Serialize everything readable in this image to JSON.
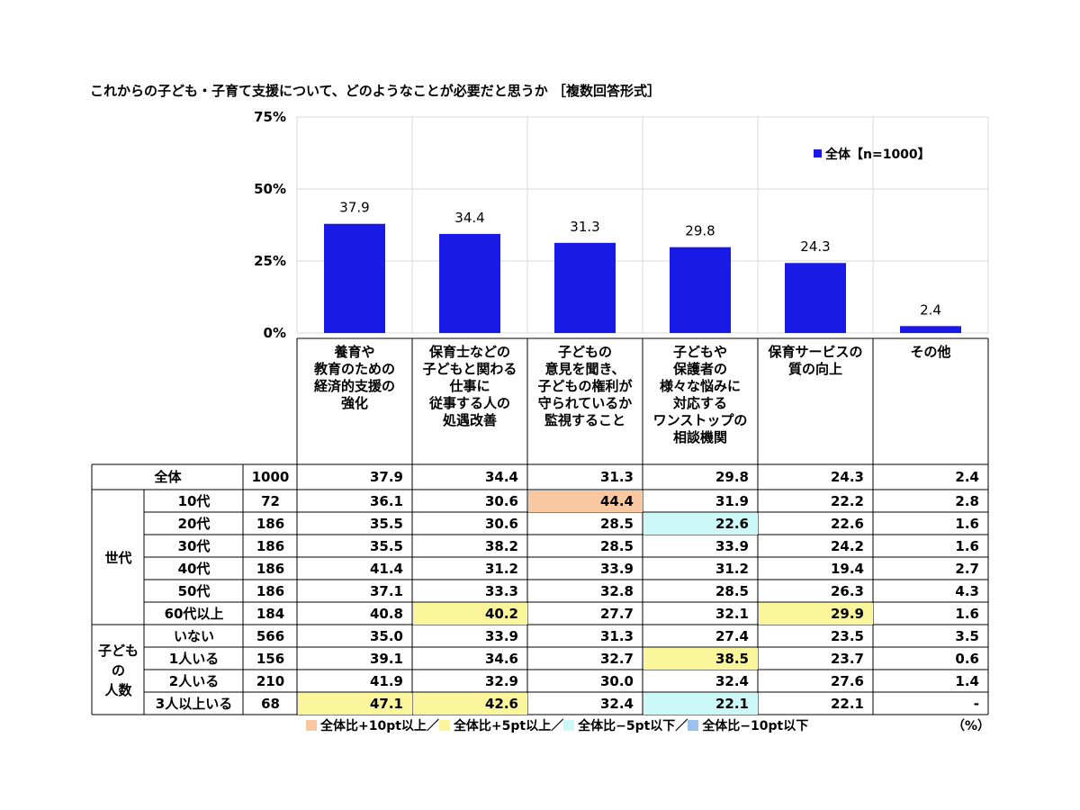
{
  "title": "これからの子ども・子育て支援について、どのようなことが必要だと思うか ［複数回答形式］",
  "chart_data": {
    "type": "bar",
    "categories": [
      "養育や\n教育のための\n経済的支援の\n強化",
      "保育士などの\n子どもと関わる\n仕事に\n従事する人の\n処遇改善",
      "子どもの\n意見を聞き、\n子どもの権利が\n守られているか\n監視すること",
      "子どもや\n保護者の\n様々な悩みに\n対応する\nワンストップの\n相談機関",
      "保育サービスの\n質の向上",
      "その他"
    ],
    "series": [
      {
        "name": "全体【n=1000】",
        "values": [
          37.9,
          34.4,
          31.3,
          29.8,
          24.3,
          2.4
        ]
      }
    ],
    "data_labels": [
      "37.9",
      "34.4",
      "31.3",
      "29.8",
      "24.3",
      "2.4"
    ],
    "yticks": [
      "75%",
      "50%",
      "25%",
      "0%"
    ],
    "ylim": [
      0,
      75
    ],
    "grid": true,
    "legend_position": "top-right",
    "bar_color": "#1a1ae6"
  },
  "table": {
    "rows": [
      {
        "group": "",
        "label": "全体",
        "n": "1000",
        "values": [
          "37.9",
          "34.4",
          "31.3",
          "29.8",
          "24.3",
          "2.4"
        ],
        "highlight": [
          null,
          null,
          null,
          null,
          null,
          null
        ]
      },
      {
        "group": "g1",
        "label": "10代",
        "n": "72",
        "values": [
          "36.1",
          "30.6",
          "44.4",
          "31.9",
          "22.2",
          "2.8"
        ],
        "highlight": [
          null,
          null,
          "p10",
          null,
          null,
          null
        ]
      },
      {
        "group": "g1",
        "label": "20代",
        "n": "186",
        "values": [
          "35.5",
          "30.6",
          "28.5",
          "22.6",
          "22.6",
          "1.6"
        ],
        "highlight": [
          null,
          null,
          null,
          "m5",
          null,
          null
        ]
      },
      {
        "group": "g1",
        "label": "30代",
        "n": "186",
        "values": [
          "35.5",
          "38.2",
          "28.5",
          "33.9",
          "24.2",
          "1.6"
        ],
        "highlight": [
          null,
          null,
          null,
          null,
          null,
          null
        ]
      },
      {
        "group": "g1",
        "label": "40代",
        "n": "186",
        "values": [
          "41.4",
          "31.2",
          "33.9",
          "31.2",
          "19.4",
          "2.7"
        ],
        "highlight": [
          null,
          null,
          null,
          null,
          null,
          null
        ]
      },
      {
        "group": "g1",
        "label": "50代",
        "n": "186",
        "values": [
          "37.1",
          "33.3",
          "32.8",
          "28.5",
          "26.3",
          "4.3"
        ],
        "highlight": [
          null,
          null,
          null,
          null,
          null,
          null
        ]
      },
      {
        "group": "g1",
        "label": "60代以上",
        "n": "184",
        "values": [
          "40.8",
          "40.2",
          "27.7",
          "32.1",
          "29.9",
          "1.6"
        ],
        "highlight": [
          null,
          "p5",
          null,
          null,
          "p5",
          null
        ]
      },
      {
        "group": "g2",
        "label": "いない",
        "n": "566",
        "values": [
          "35.0",
          "33.9",
          "31.3",
          "27.4",
          "23.5",
          "3.5"
        ],
        "highlight": [
          null,
          null,
          null,
          null,
          null,
          null
        ]
      },
      {
        "group": "g2",
        "label": "1人いる",
        "n": "156",
        "values": [
          "39.1",
          "34.6",
          "32.7",
          "38.5",
          "23.7",
          "0.6"
        ],
        "highlight": [
          null,
          null,
          null,
          "p5",
          null,
          null
        ]
      },
      {
        "group": "g2",
        "label": "2人いる",
        "n": "210",
        "values": [
          "41.9",
          "32.9",
          "30.0",
          "32.4",
          "27.6",
          "1.4"
        ],
        "highlight": [
          null,
          null,
          null,
          null,
          null,
          null
        ]
      },
      {
        "group": "g2",
        "label": "3人以上いる",
        "n": "68",
        "values": [
          "47.1",
          "42.6",
          "32.4",
          "22.1",
          "22.1",
          "-"
        ],
        "highlight": [
          "p5",
          "p5",
          null,
          "m5",
          null,
          null
        ]
      }
    ],
    "groups": {
      "g1": "世代",
      "g2": "子ども\nの\n人数"
    }
  },
  "legend_items": [
    {
      "key": "p10",
      "label": "全体比+10pt以上／",
      "color": "#f9c8a1"
    },
    {
      "key": "p5",
      "label": "全体比+5pt以上／",
      "color": "#fbf59b"
    },
    {
      "key": "m5",
      "label": "全体比−5pt以下／",
      "color": "#ccf8f8"
    },
    {
      "key": "m10",
      "label": "全体比−10pt以下",
      "color": "#9cc1ee"
    }
  ],
  "unit": "（%）"
}
